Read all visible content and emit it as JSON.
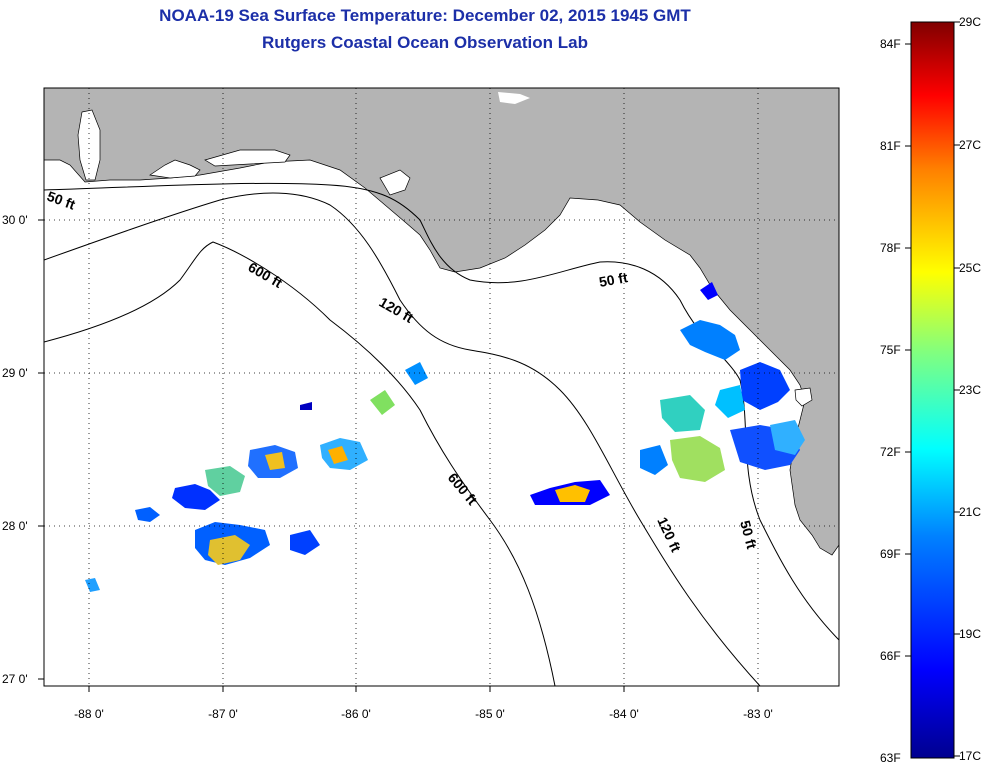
{
  "title": {
    "line1": "NOAA-19 Sea Surface Temperature:  December 02, 2015 1945 GMT",
    "line2": "Rutgers Coastal Ocean Observation Lab"
  },
  "axes": {
    "lat_ticks": [
      {
        "value": 30,
        "label": "30 0'"
      },
      {
        "value": 29,
        "label": "29 0'"
      },
      {
        "value": 28,
        "label": "28 0'"
      },
      {
        "value": 27,
        "label": "27 0'"
      }
    ],
    "lon_ticks": [
      {
        "value": -88,
        "label": "-88 0'"
      },
      {
        "value": -87,
        "label": "-87 0'"
      },
      {
        "value": -86,
        "label": "-86 0'"
      },
      {
        "value": -85,
        "label": "-85 0'"
      },
      {
        "value": -84,
        "label": "-84 0'"
      },
      {
        "value": -83,
        "label": "-83 0'"
      }
    ]
  },
  "contour_labels": [
    {
      "text": "50 ft"
    },
    {
      "text": "600 ft"
    },
    {
      "text": "120 ft"
    },
    {
      "text": "50 ft"
    },
    {
      "text": "600 ft"
    },
    {
      "text": "120 ft"
    },
    {
      "text": "50 ft"
    }
  ],
  "colorbar": {
    "fahrenheit_labels": [
      "84F",
      "81F",
      "78F",
      "75F",
      "72F",
      "69F",
      "66F",
      "63F"
    ],
    "celsius_labels": [
      "29C",
      "27C",
      "25C",
      "23C",
      "21C",
      "19C",
      "17C"
    ],
    "colors": [
      "#00008f",
      "#0000ff",
      "#0080ff",
      "#00ffff",
      "#80ff80",
      "#ffff00",
      "#ff8000",
      "#ff0000",
      "#800000"
    ]
  },
  "colors": {
    "land": "#b4b4b4",
    "ocean": "#ffffff",
    "title": "#1c2fa8"
  }
}
